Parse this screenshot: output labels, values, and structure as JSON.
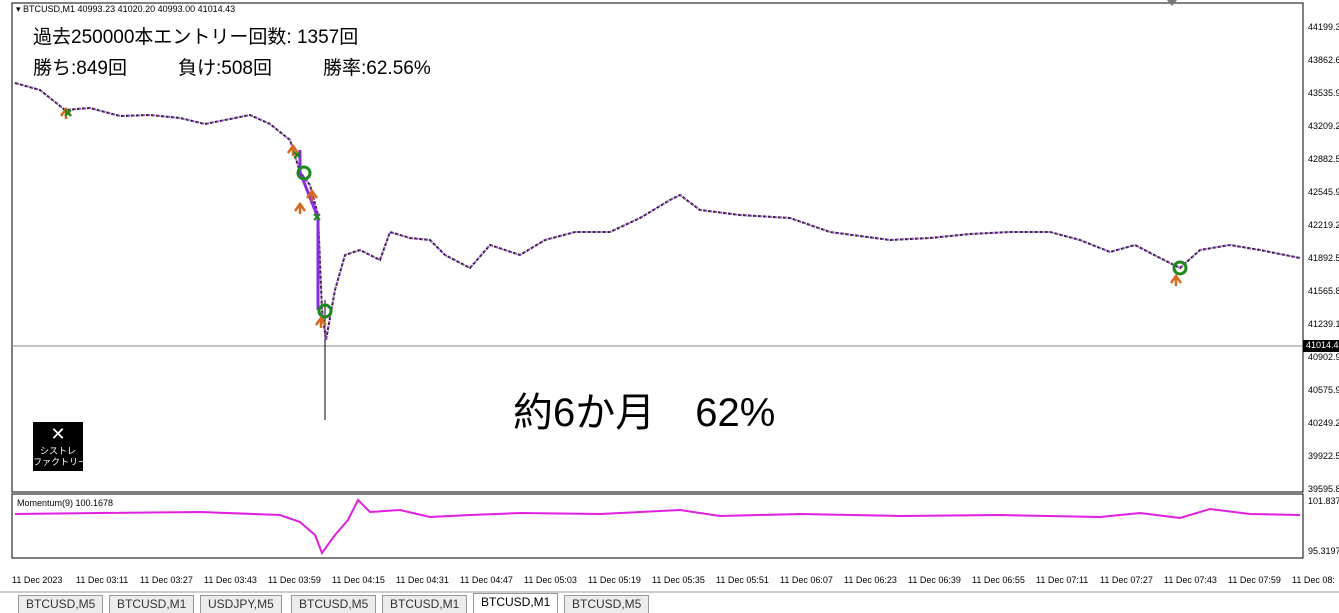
{
  "header": "BTCUSD,M1  40993.23 41020.20 40993.00 41014.43",
  "overlay": {
    "line1": "過去250000本エントリー回数: 1357回",
    "wins": "勝ち:849回",
    "losses": "負け:508回",
    "rate": "勝率:62.56%",
    "big": "約6か月　62%"
  },
  "logo": {
    "line1": "シストレ",
    "line2": "ファクトリー"
  },
  "price_axis": {
    "labels": [
      "44199.3",
      "43862.6",
      "43535.9",
      "43209.2",
      "42882.5",
      "42545.9",
      "42219.2",
      "41892.5",
      "41565.8",
      "41239.1",
      "40902.9",
      "40575.9",
      "40249.2",
      "39922.5",
      "39595.8"
    ],
    "current": "41014.4"
  },
  "indicator": {
    "label": "Momentum(9) 100.1678",
    "axis_top": "101.837",
    "axis_bottom": "95.3197"
  },
  "time_axis": [
    "11 Dec 2023",
    "11 Dec 03:11",
    "11 Dec 03:27",
    "11 Dec 03:43",
    "11 Dec 03:59",
    "11 Dec 04:15",
    "11 Dec 04:31",
    "11 Dec 04:47",
    "11 Dec 05:03",
    "11 Dec 05:19",
    "11 Dec 05:35",
    "11 Dec 05:51",
    "11 Dec 06:07",
    "11 Dec 06:23",
    "11 Dec 06:39",
    "11 Dec 06:55",
    "11 Dec 07:11",
    "11 Dec 07:27",
    "11 Dec 07:43",
    "11 Dec 07:59",
    "11 Dec 08:"
  ],
  "tabs": [
    "BTCUSD,M5",
    "BTCUSD,M1",
    "USDJPY,M5",
    "BTCUSD,M5",
    "BTCUSD,M1",
    "BTCUSD,M1",
    "BTCUSD,M5"
  ]
}
